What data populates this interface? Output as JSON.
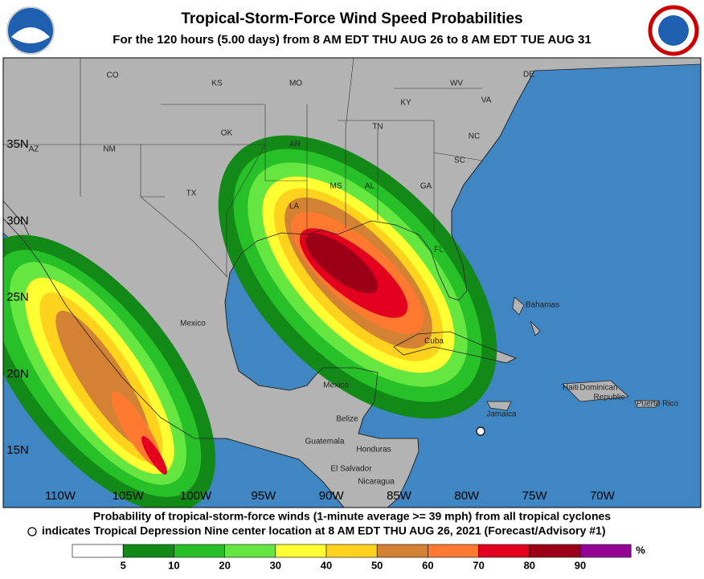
{
  "header": {
    "title": "Tropical-Storm-Force Wind Speed Probabilities",
    "subtitle": "For the 120 hours (5.00 days) from 8 AM EDT THU AUG 26 to 8 AM EDT TUE AUG 31"
  },
  "map": {
    "latitude_labels": [
      "35N",
      "30N",
      "25N",
      "20N",
      "15N"
    ],
    "longitude_labels": [
      "110W",
      "105W",
      "100W",
      "95W",
      "90W",
      "85W",
      "80W",
      "75W",
      "70W"
    ],
    "place_labels": [
      "CO",
      "KS",
      "MO",
      "KY",
      "WV",
      "VA",
      "DE",
      "TN",
      "NC",
      "OK",
      "NM",
      "AZ",
      "AR",
      "SC",
      "TX",
      "MS",
      "AL",
      "GA",
      "LA",
      "FL",
      "Mexico",
      "Bahamas",
      "Cuba",
      "Mexico",
      "Haiti",
      "Dominican",
      "Republic",
      "Puerto Rico",
      "Jamaica",
      "Belize",
      "Guatemala",
      "Honduras",
      "El Salvador",
      "Nicaragua"
    ]
  },
  "footer": {
    "line1": "Probability of tropical-storm-force winds (1-minute average >= 39 mph) from all tropical cyclones",
    "line2": "indicates Tropical Depression Nine center location at 8 AM EDT THU AUG 26, 2021 (Forecast/Advisory #1)"
  },
  "legend": {
    "ticks": [
      5,
      10,
      20,
      30,
      40,
      50,
      60,
      70,
      80,
      90
    ],
    "unit": "%",
    "colors": [
      "#ffffff",
      "#138a18",
      "#28c028",
      "#66e640",
      "#ffff33",
      "#ffd21e",
      "#d28232",
      "#ff7a30",
      "#e3001f",
      "#9b0016",
      "#930093"
    ]
  }
}
